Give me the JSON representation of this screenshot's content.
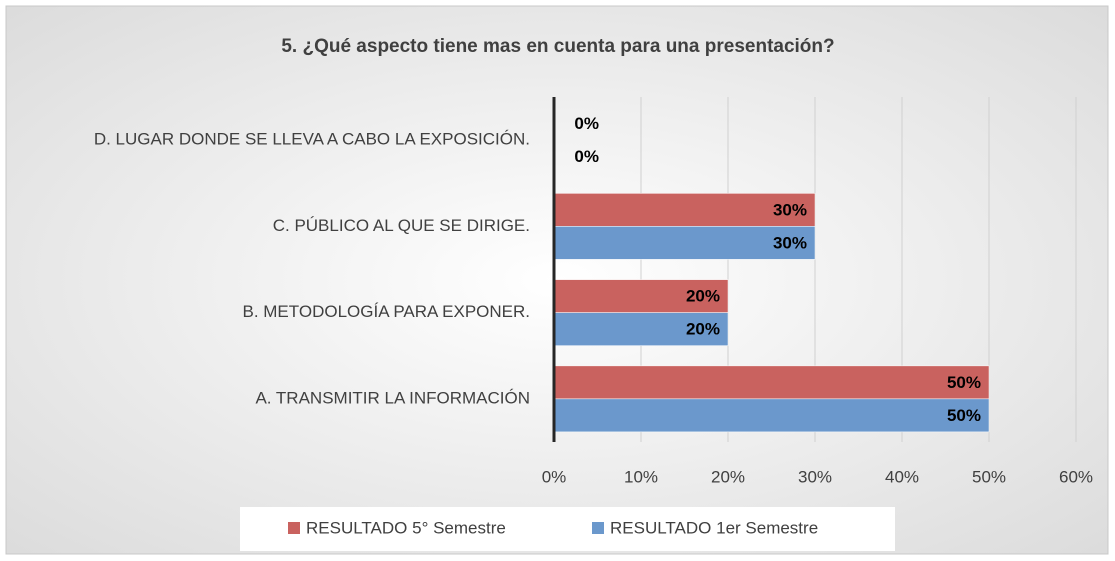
{
  "chart_data": {
    "type": "bar",
    "orientation": "horizontal",
    "title": "5. ¿Qué aspecto tiene mas en cuenta para una presentación?",
    "categories": [
      "A. TRANSMITIR LA INFORMACIÓN",
      "B. METODOLOGÍA PARA EXPONER.",
      "C. PÚBLICO AL QUE SE DIRIGE.",
      "D. LUGAR DONDE SE LLEVA A CABO LA EXPOSICIÓN."
    ],
    "series": [
      {
        "name": "RESULTADO 5° Semestre",
        "color": "#c9625f",
        "values": [
          50,
          20,
          30,
          0
        ],
        "value_labels": [
          "50%",
          "20%",
          "30%",
          "0%"
        ]
      },
      {
        "name": "RESULTADO 1er Semestre",
        "color": "#6b98cc",
        "values": [
          50,
          20,
          30,
          0
        ],
        "value_labels": [
          "50%",
          "20%",
          "30%",
          "0%"
        ]
      }
    ],
    "xlim": [
      0,
      60
    ],
    "xticks": [
      {
        "value": 0,
        "label": "0%"
      },
      {
        "value": 10,
        "label": "10%"
      },
      {
        "value": 20,
        "label": "20%"
      },
      {
        "value": 30,
        "label": "30%"
      },
      {
        "value": 40,
        "label": "40%"
      },
      {
        "value": 50,
        "label": "50%"
      },
      {
        "value": 60,
        "label": "60%"
      }
    ],
    "grid": true,
    "legend": "bottom"
  }
}
